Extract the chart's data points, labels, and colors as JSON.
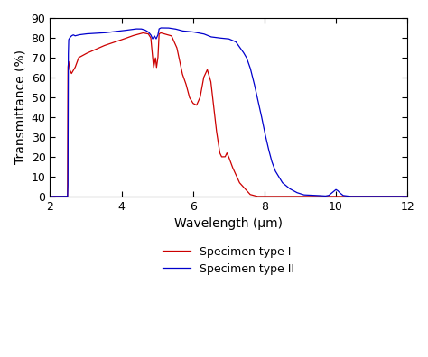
{
  "title": "",
  "xlabel": "Wavelength (μm)",
  "ylabel": "Transmittance (%)",
  "xlim": [
    2,
    12
  ],
  "ylim": [
    0,
    90
  ],
  "xticks": [
    2,
    4,
    6,
    8,
    10,
    12
  ],
  "yticks": [
    0,
    10,
    20,
    30,
    40,
    50,
    60,
    70,
    80,
    90
  ],
  "color_type1": "#cc0000",
  "color_type2": "#0000cc",
  "legend": [
    "Specimen type I",
    "Specimen type II"
  ],
  "background_color": "#ffffff"
}
